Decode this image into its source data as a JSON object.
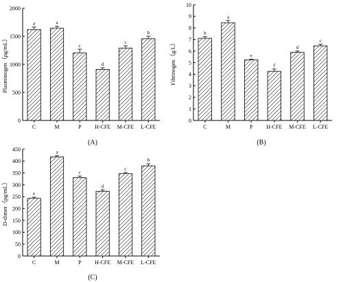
{
  "chart_data": [
    {
      "type": "bar",
      "panel": "(A)",
      "ylabel": "Plasminogen（pg/mL）",
      "categories": [
        "C",
        "M",
        "P",
        "H-CFE",
        "M-CFE",
        "L-CFE"
      ],
      "values": [
        1620,
        1645,
        1205,
        910,
        1290,
        1455
      ],
      "errors": [
        45,
        35,
        65,
        30,
        40,
        45
      ],
      "significance": [
        "a",
        "a",
        "c",
        "d",
        "c",
        "b"
      ],
      "ylim": [
        0,
        2000
      ],
      "yticks": [
        0,
        500,
        1000,
        1500,
        2000
      ]
    },
    {
      "type": "bar",
      "panel": "(B)",
      "ylabel": "Fibrinogen（g/L）",
      "categories": [
        "C",
        "M",
        "P",
        "H-CFE",
        "M-CFE",
        "L-CFE"
      ],
      "values": [
        7.1,
        8.45,
        5.25,
        4.25,
        5.9,
        6.45
      ],
      "errors": [
        0.15,
        0.2,
        0.05,
        0.2,
        0.1,
        0.15
      ],
      "significance": [
        "b",
        "a",
        "e",
        "f",
        "d",
        "c"
      ],
      "ylim": [
        0,
        10
      ],
      "yticks": [
        0,
        1,
        2,
        3,
        4,
        5,
        6,
        7,
        8,
        9,
        10
      ]
    },
    {
      "type": "bar",
      "panel": "(C)",
      "ylabel": "D-dimer（pg/mL）",
      "categories": [
        "C",
        "M",
        "P",
        "H-CFE",
        "M-CFE",
        "L-CFE"
      ],
      "values": [
        243,
        418,
        330,
        273,
        347,
        380
      ],
      "errors": [
        5,
        5,
        7,
        6,
        5,
        9
      ],
      "significance": [
        "e",
        "a",
        "c",
        "d",
        "c",
        "b"
      ],
      "ylim": [
        0,
        450
      ],
      "yticks": [
        0,
        50,
        100,
        150,
        200,
        250,
        300,
        350,
        400,
        450
      ]
    }
  ]
}
